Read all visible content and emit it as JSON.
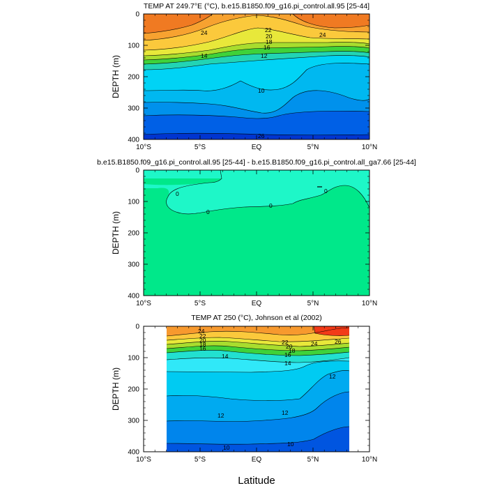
{
  "figure": {
    "xlabel": "Latitude"
  },
  "chart_data": [
    {
      "type": "heatmap",
      "title": "TEMP AT 249.7°E (°C), b.e15.B1850.f09_g16.pi_control.all.95 [25-44]",
      "xlabel": "",
      "ylabel": "DEPTH (m)",
      "xlim": [
        -10,
        10
      ],
      "ylim": [
        400,
        0
      ],
      "x_ticks": [
        "10°S",
        "5°S",
        "EQ",
        "5°N",
        "10°N"
      ],
      "y_ticks": [
        "0",
        "100",
        "200",
        "300",
        "400"
      ],
      "contour_labels": [
        "24",
        "22",
        "20",
        "18",
        "16",
        "14",
        "12",
        "10",
        "26"
      ],
      "levels": [
        26,
        24,
        22,
        20,
        18,
        16,
        14,
        12,
        10
      ],
      "colors": [
        "#f07a22",
        "#f7a230",
        "#fbc93c",
        "#e8e83a",
        "#a8dd2e",
        "#3fd23a",
        "#22d4b4",
        "#00d3f5",
        "#00b8f0",
        "#0091ec",
        "#0060e6",
        "#0035d0"
      ]
    },
    {
      "type": "heatmap",
      "title": "b.e15.B1850.f09_g16.pi_control.all.95 [25-44] - b.e15.B1850.f09_g16.pi_control.all_ga7.66 [25-44]",
      "xlabel": "",
      "ylabel": "DEPTH (m)",
      "xlim": [
        -10,
        10
      ],
      "ylim": [
        400,
        0
      ],
      "x_ticks": [
        "10°S",
        "5°S",
        "EQ",
        "5°N",
        "10°N"
      ],
      "y_ticks": [
        "0",
        "100",
        "200",
        "300",
        "400"
      ],
      "contour_labels": [
        "0",
        "0",
        "0",
        "0"
      ],
      "levels": [
        0
      ],
      "colors": [
        "#00e88a",
        "#1ef7c8"
      ]
    },
    {
      "type": "heatmap",
      "title": "TEMP AT 250 (°C), Johnson et al (2002)",
      "xlabel": "",
      "ylabel": "DEPTH (m)",
      "xlim": [
        -10,
        10
      ],
      "ylim": [
        400,
        0
      ],
      "data_xrange": [
        -8,
        8.2
      ],
      "x_ticks": [
        "10°S",
        "5°S",
        "EQ",
        "5°N",
        "10°N"
      ],
      "y_ticks": [
        "0",
        "100",
        "200",
        "300",
        "400"
      ],
      "contour_labels": [
        "24",
        "22",
        "20",
        "18",
        "16",
        "14",
        "14",
        "22",
        "24",
        "26",
        "20",
        "18",
        "16",
        "12",
        "12",
        "12",
        "10",
        "10"
      ],
      "levels": [
        26,
        24,
        22,
        20,
        18,
        16,
        14,
        12,
        10
      ],
      "colors": [
        "#f23a18",
        "#f7992e",
        "#fbc93c",
        "#e8e83a",
        "#a8dd2e",
        "#3fd23a",
        "#22e0d0",
        "#30e8f8",
        "#00cbf2",
        "#00aaf0",
        "#0085ec",
        "#0055e0"
      ]
    }
  ]
}
